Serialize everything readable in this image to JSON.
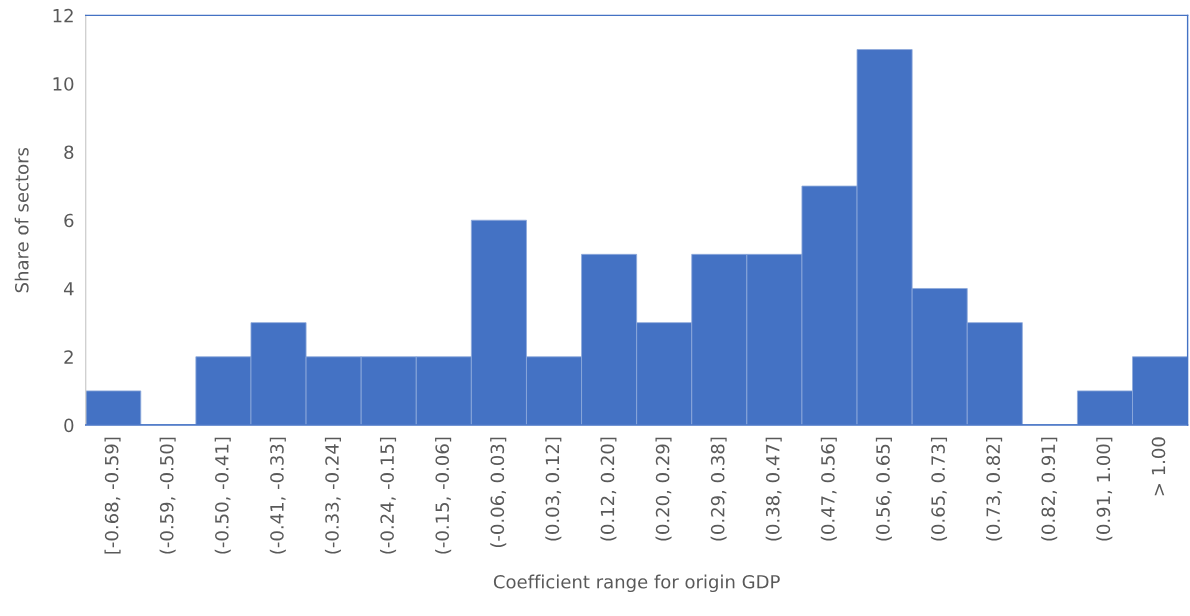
{
  "chart_data": {
    "type": "bar",
    "xlabel": "Coefficient range for origin GDP",
    "ylabel": "Share of sectors",
    "categories": [
      "[-0.68, -0.59]",
      "(-0.59, -0.50]",
      "(-0.50, -0.41]",
      "(-0.41, -0.33]",
      "(-0.33, -0.24]",
      "(-0.24, -0.15]",
      "(-0.15, -0.06]",
      "(-0.06, 0.03]",
      "(0.03, 0.12]",
      "(0.12, 0.20]",
      "(0.20, 0.29]",
      "(0.29, 0.38]",
      "(0.38, 0.47]",
      "(0.47, 0.56]",
      "(0.56, 0.65]",
      "(0.65, 0.73]",
      "(0.73, 0.82]",
      "(0.82, 0.91]",
      "(0.91, 1.00]",
      "> 1.00"
    ],
    "values": [
      1,
      0,
      2,
      3,
      2,
      2,
      2,
      6,
      2,
      5,
      3,
      5,
      5,
      7,
      11,
      4,
      3,
      0,
      1,
      2
    ],
    "color": "#4472c4",
    "ylim": [
      0,
      12
    ],
    "yticks": [
      0,
      2,
      4,
      6,
      8,
      10,
      12
    ],
    "grid": false,
    "legend": false
  }
}
